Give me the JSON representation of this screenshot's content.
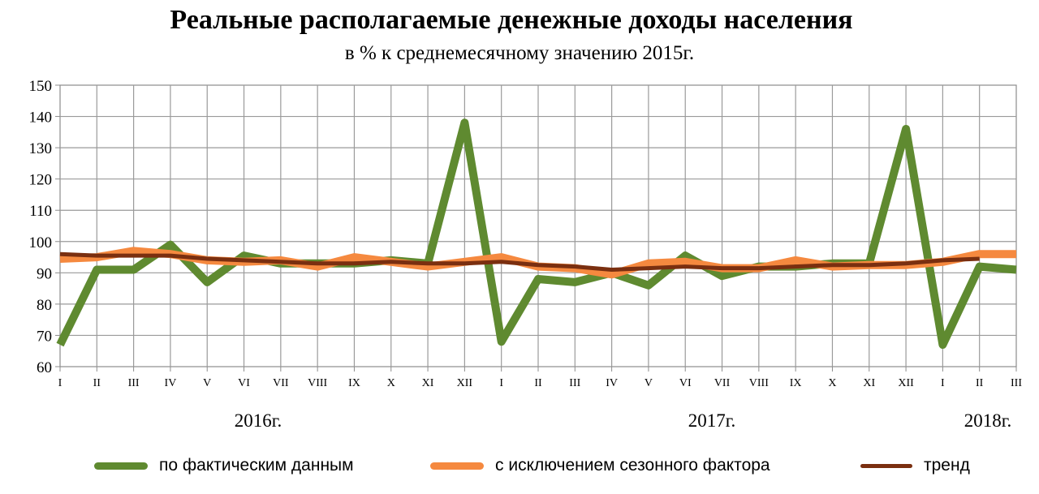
{
  "chart_data": {
    "type": "line",
    "title": "Реальные располагаемые денежные доходы населения",
    "subtitle": "в % к среднемесячному значению 2015г.",
    "categories": [
      "I",
      "II",
      "III",
      "IV",
      "V",
      "VI",
      "VII",
      "VIII",
      "IX",
      "X",
      "XI",
      "XII",
      "I",
      "II",
      "III",
      "IV",
      "V",
      "VI",
      "VII",
      "VIII",
      "IX",
      "X",
      "XI",
      "XII",
      "I",
      "II",
      "III"
    ],
    "year_labels": [
      "2016г.",
      "2017г.",
      "2018г."
    ],
    "ylim": [
      60,
      150
    ],
    "yticks": [
      60,
      70,
      80,
      90,
      100,
      110,
      120,
      130,
      140,
      150
    ],
    "grid": true,
    "legend_position": "bottom",
    "series": [
      {
        "name": "по фактическим  данным",
        "color": "#5f8a30",
        "values": [
          67,
          91,
          91,
          99,
          87,
          95.5,
          93,
          93,
          93,
          94,
          93,
          138,
          68,
          88,
          87,
          90,
          86,
          95.5,
          89,
          92,
          92,
          93,
          93,
          136,
          67,
          92,
          91
        ]
      },
      {
        "name": "с исключением  сезонного фактора",
        "color": "#f5893f",
        "values": [
          94.5,
          95,
          97,
          96,
          94,
          93.5,
          94,
          92,
          95,
          93.5,
          92,
          93.5,
          95,
          92,
          91.5,
          89.5,
          93,
          93.5,
          91.5,
          91.5,
          94,
          92,
          92.5,
          92.5,
          93.5,
          96,
          96
        ]
      },
      {
        "name": "тренд",
        "color": "#7a2f10",
        "values": [
          96,
          95.5,
          95.5,
          95.5,
          94.5,
          94,
          93.5,
          93,
          93,
          93.5,
          93,
          93,
          93.5,
          92.5,
          92,
          91,
          91.5,
          92,
          91.5,
          91.5,
          92,
          92.5,
          92.5,
          93,
          94,
          94.5,
          null
        ]
      }
    ]
  }
}
